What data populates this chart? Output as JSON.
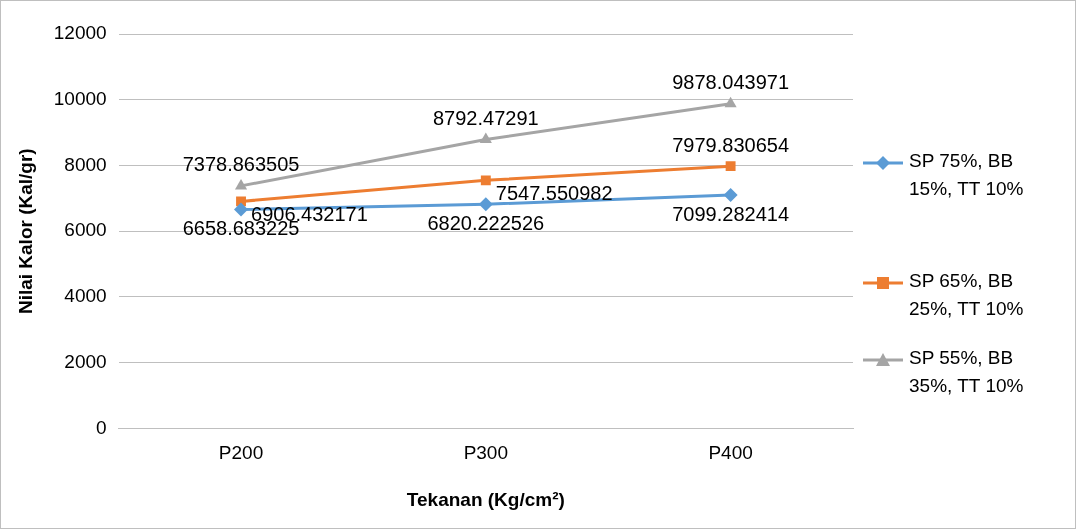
{
  "chart_data": {
    "type": "line",
    "xlabel": "Tekanan (Kg/cm²)",
    "ylabel": "Nilai Kalor (Kal/gr)",
    "categories": [
      "P200",
      "P300",
      "P400"
    ],
    "series": [
      {
        "name": "SP 75%, BB 15%, TT 10%",
        "color": "#5b9bd5",
        "marker": "diamond",
        "values": [
          6658.683225,
          6820.222526,
          7099.282414
        ]
      },
      {
        "name": "SP 65%, BB 25%, TT 10%",
        "color": "#ed7d31",
        "marker": "square",
        "values": [
          6906.432171,
          7547.550982,
          7979.830654
        ]
      },
      {
        "name": "SP 55%, BB 35%, TT 10%",
        "color": "#a5a5a5",
        "marker": "triangle",
        "values": [
          7378.863505,
          8792.47291,
          9878.043971
        ]
      }
    ],
    "ylim": [
      0,
      12000
    ],
    "yticks": [
      0,
      2000,
      4000,
      6000,
      8000,
      10000,
      12000
    ],
    "grid": "y",
    "legend": "right",
    "data_labels": true
  }
}
